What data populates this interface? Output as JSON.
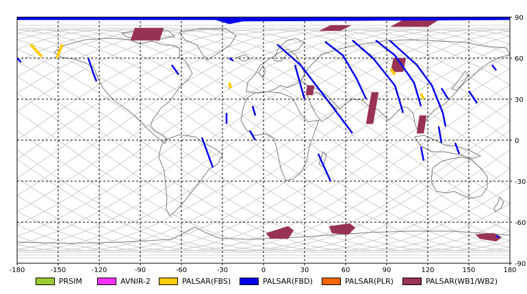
{
  "map": {
    "projection": "equirectangular",
    "lon_range": [
      -180,
      180
    ],
    "lat_range": [
      -90,
      90
    ],
    "x_ticks": [
      "-180",
      "-150",
      "-120",
      "-90",
      "-60",
      "-30",
      "0",
      "30",
      "60",
      "90",
      "120",
      "150",
      "180"
    ],
    "y_ticks": [
      "90",
      "60",
      "30",
      "0",
      "-30",
      "-60",
      "-90"
    ],
    "grid": true,
    "grid_style": "dashed black",
    "background_tracks_color": "#c0c0c0",
    "coastline_color": "#7a7a7a"
  },
  "legend": {
    "placement": "bottom",
    "items": [
      {
        "label": "PRSIM",
        "color": "#99cc33"
      },
      {
        "label": "AVNIR-2",
        "color": "#ff33ff"
      },
      {
        "label": "PALSAR(FBS)",
        "color": "#ffcc00"
      },
      {
        "label": "PALSAR(FBD)",
        "color": "#0000ee"
      },
      {
        "label": "PALSAR(PLR)",
        "color": "#ff6600"
      },
      {
        "label": "PALSAR(WB1/WB2)",
        "color": "#993355"
      }
    ]
  },
  "observations": {
    "fbd_strips": [
      [
        [
          10,
          70
        ],
        [
          27,
          55
        ],
        [
          50,
          25
        ],
        [
          65,
          5
        ]
      ],
      [
        [
          -180,
          60
        ],
        [
          -177,
          57
        ]
      ],
      [
        [
          -128,
          60
        ],
        [
          -124,
          48
        ],
        [
          -122,
          43
        ]
      ],
      [
        [
          -67,
          55
        ],
        [
          -62,
          48
        ]
      ],
      [
        [
          -25,
          60
        ],
        [
          -22,
          58
        ]
      ],
      [
        [
          23,
          55
        ],
        [
          30,
          30
        ]
      ],
      [
        [
          -8,
          25
        ],
        [
          -6,
          18
        ]
      ],
      [
        [
          -27,
          20
        ],
        [
          -27,
          12
        ]
      ],
      [
        [
          -10,
          7
        ],
        [
          -6,
          0
        ]
      ],
      [
        [
          40,
          -10
        ],
        [
          49,
          -30
        ]
      ],
      [
        [
          -45,
          2
        ],
        [
          -37,
          -20
        ]
      ],
      [
        [
          65,
          73
        ],
        [
          80,
          60
        ],
        [
          96,
          40
        ],
        [
          102,
          20
        ]
      ],
      [
        [
          45,
          72
        ],
        [
          58,
          62
        ],
        [
          68,
          45
        ],
        [
          75,
          30
        ]
      ],
      [
        [
          92,
          73
        ],
        [
          112,
          55
        ],
        [
          123,
          40
        ],
        [
          131,
          20
        ],
        [
          133,
          10
        ]
      ],
      [
        [
          82,
          73
        ],
        [
          96,
          62
        ],
        [
          110,
          42
        ],
        [
          115,
          25
        ]
      ],
      [
        [
          128,
          10
        ],
        [
          130,
          -2
        ]
      ],
      [
        [
          140,
          -2
        ],
        [
          143,
          -10
        ]
      ],
      [
        [
          150,
          36
        ],
        [
          156,
          27
        ]
      ],
      [
        [
          130,
          38
        ],
        [
          135,
          30
        ]
      ],
      [
        [
          115,
          -5
        ],
        [
          117,
          -15
        ]
      ],
      [
        [
          167,
          55
        ],
        [
          170,
          51
        ]
      ],
      [
        [
          170,
          -70
        ],
        [
          172,
          -71
        ]
      ]
    ],
    "fbs_strips": [
      [
        [
          -170,
          70
        ],
        [
          -162,
          61
        ]
      ],
      [
        [
          -147,
          70
        ],
        [
          -151,
          60
        ]
      ],
      [
        [
          -25,
          42
        ],
        [
          -24,
          38
        ]
      ],
      [
        [
          93,
          52
        ],
        [
          96,
          48
        ]
      ],
      [
        [
          115,
          34
        ],
        [
          117,
          30
        ]
      ]
    ],
    "wb_swaths": [
      [
        [
          -94,
          82
        ],
        [
          -73,
          82
        ],
        [
          -76,
          73
        ],
        [
          -97,
          73
        ]
      ],
      [
        [
          49,
          84
        ],
        [
          64,
          84
        ],
        [
          56,
          80
        ],
        [
          41,
          80
        ]
      ],
      [
        [
          102,
          88
        ],
        [
          128,
          88
        ],
        [
          120,
          83
        ],
        [
          93,
          83
        ]
      ],
      [
        [
          95,
          60
        ],
        [
          104,
          60
        ],
        [
          102,
          50
        ],
        [
          93,
          50
        ]
      ],
      [
        [
          32,
          40
        ],
        [
          37,
          40
        ],
        [
          36,
          33
        ],
        [
          31,
          33
        ]
      ],
      [
        [
          79,
          35
        ],
        [
          84,
          35
        ],
        [
          80,
          12
        ],
        [
          75,
          12
        ]
      ],
      [
        [
          114,
          18
        ],
        [
          119,
          18
        ],
        [
          117,
          5
        ],
        [
          112,
          5
        ]
      ],
      [
        [
          2,
          -68
        ],
        [
          18,
          -63
        ],
        [
          22,
          -66
        ],
        [
          18,
          -72
        ],
        [
          5,
          -72
        ]
      ],
      [
        [
          48,
          -63
        ],
        [
          63,
          -61
        ],
        [
          67,
          -64
        ],
        [
          62,
          -69
        ],
        [
          50,
          -68
        ]
      ],
      [
        [
          155,
          -69
        ],
        [
          168,
          -68
        ],
        [
          174,
          -71
        ],
        [
          170,
          -74
        ],
        [
          158,
          -72
        ]
      ]
    ],
    "arctic_fbd_band": [
      [
        -180,
        90
      ],
      [
        180,
        90
      ],
      [
        180,
        88
      ],
      [
        -15,
        87
      ],
      [
        -25,
        85
      ],
      [
        -35,
        88
      ],
      [
        -180,
        88
      ]
    ]
  }
}
